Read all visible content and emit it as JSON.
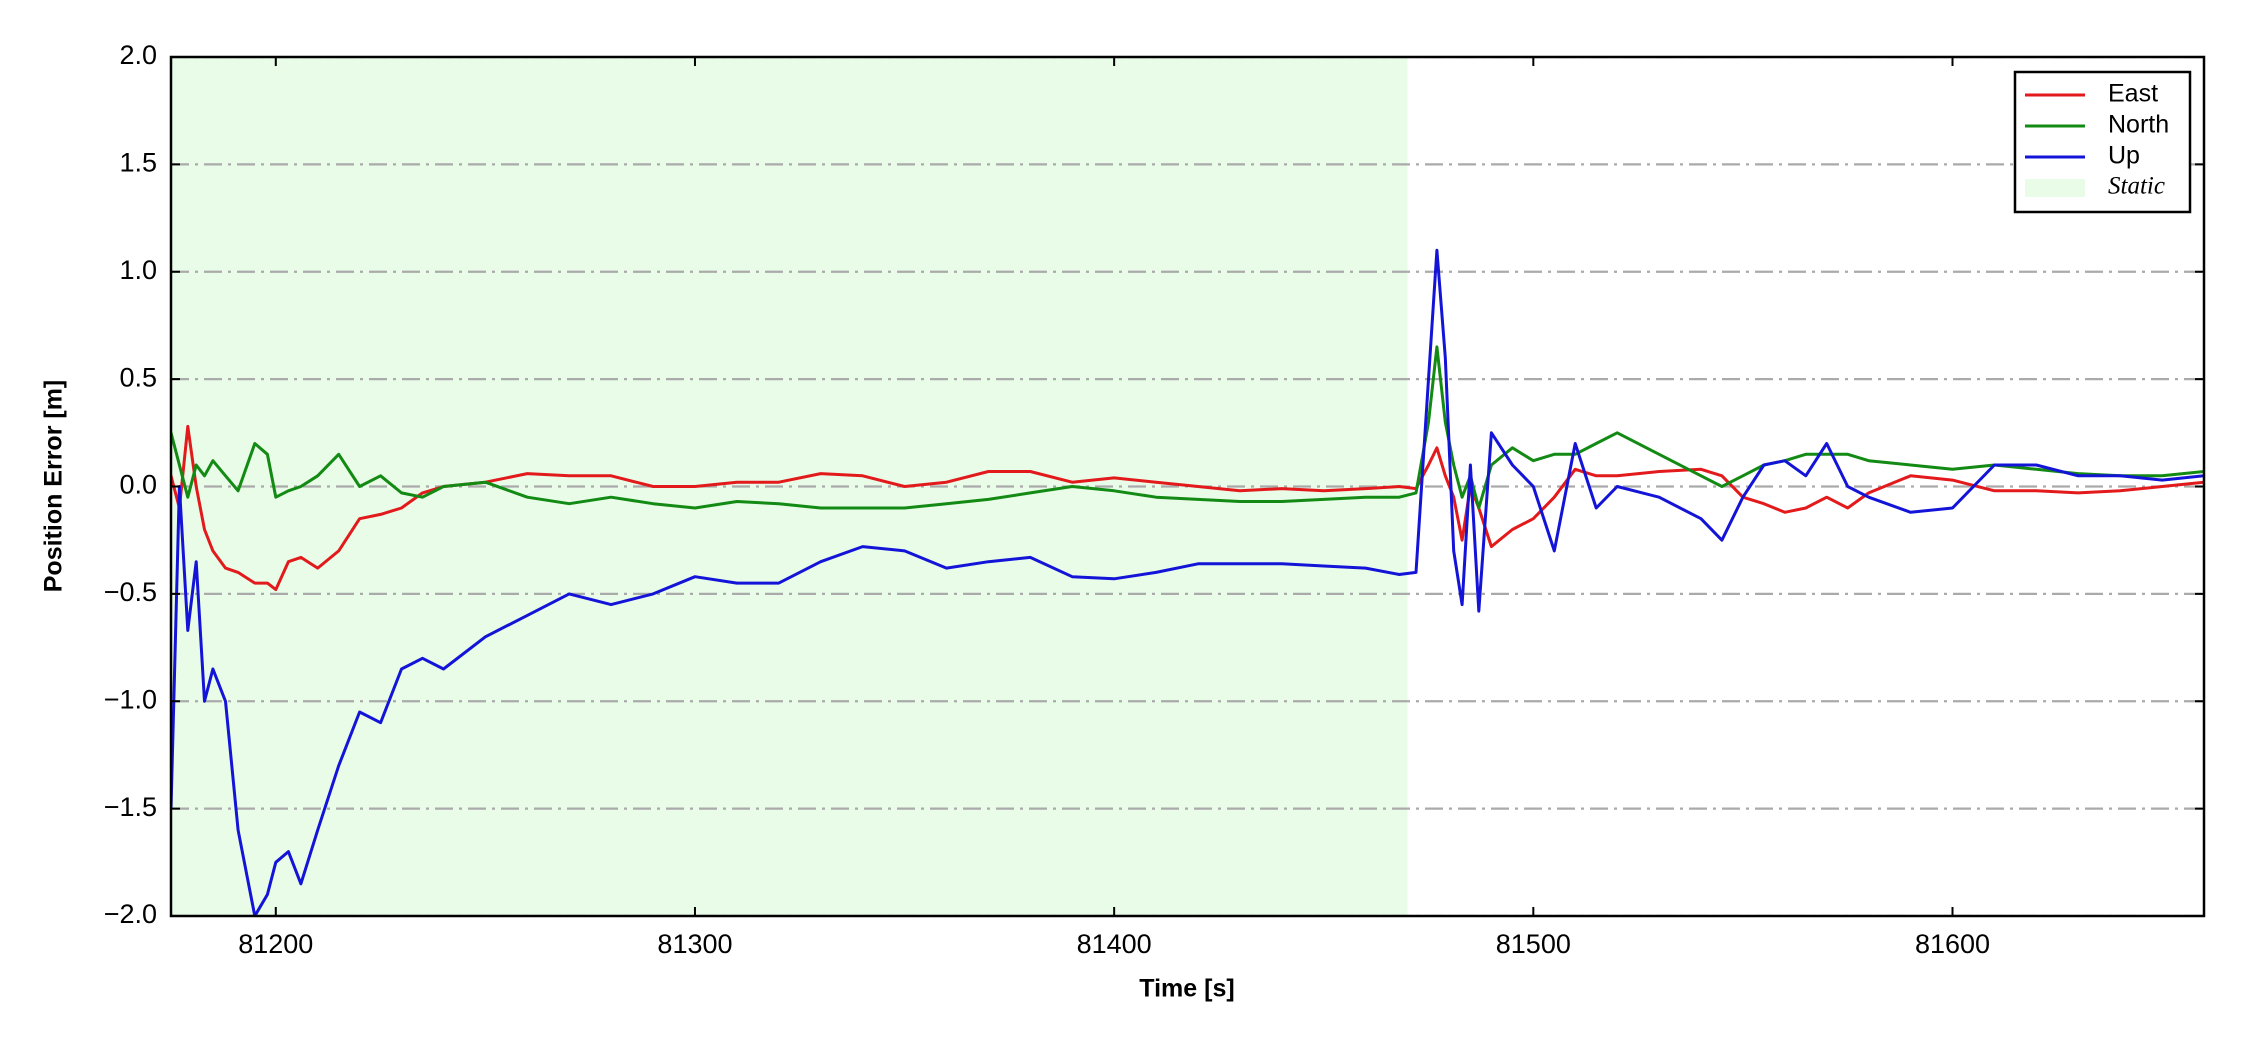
{
  "chart_data": {
    "type": "line",
    "xlabel": "Time [s]",
    "ylabel": "Position Error [m]",
    "x": [
      81175,
      81177,
      81179,
      81181,
      81183,
      81185,
      81188,
      81191,
      81195,
      81198,
      81200,
      81203,
      81206,
      81210,
      81215,
      81220,
      81225,
      81230,
      81235,
      81240,
      81250,
      81260,
      81270,
      81280,
      81290,
      81300,
      81310,
      81320,
      81330,
      81340,
      81350,
      81360,
      81370,
      81380,
      81390,
      81400,
      81410,
      81420,
      81430,
      81440,
      81450,
      81460,
      81468,
      81472,
      81475,
      81477,
      81479,
      81481,
      81483,
      81485,
      81487,
      81490,
      81495,
      81500,
      81505,
      81510,
      81515,
      81520,
      81530,
      81540,
      81545,
      81550,
      81555,
      81560,
      81565,
      81570,
      81575,
      81580,
      81590,
      81600,
      81610,
      81620,
      81630,
      81640,
      81650,
      81660
    ],
    "series": [
      {
        "name": "East",
        "color": "#e31a1c",
        "values": [
          0.05,
          -0.1,
          0.28,
          0.0,
          -0.2,
          -0.3,
          -0.38,
          -0.4,
          -0.45,
          -0.45,
          -0.48,
          -0.35,
          -0.33,
          -0.38,
          -0.3,
          -0.15,
          -0.13,
          -0.1,
          -0.03,
          0.0,
          0.02,
          0.06,
          0.05,
          0.05,
          0.0,
          0.0,
          0.02,
          0.02,
          0.06,
          0.05,
          0.0,
          0.02,
          0.07,
          0.07,
          0.02,
          0.04,
          0.02,
          0.0,
          -0.02,
          -0.01,
          -0.02,
          -0.01,
          0.0,
          -0.01,
          0.1,
          0.18,
          0.05,
          -0.05,
          -0.25,
          0.0,
          -0.1,
          -0.28,
          -0.2,
          -0.15,
          -0.05,
          0.08,
          0.05,
          0.05,
          0.07,
          0.08,
          0.05,
          -0.05,
          -0.08,
          -0.12,
          -0.1,
          -0.05,
          -0.1,
          -0.03,
          0.05,
          0.03,
          -0.02,
          -0.02,
          -0.03,
          -0.02,
          0.0,
          0.02
        ]
      },
      {
        "name": "North",
        "color": "#138a13",
        "values": [
          0.25,
          0.1,
          -0.05,
          0.1,
          0.05,
          0.12,
          0.05,
          -0.02,
          0.2,
          0.15,
          -0.05,
          -0.02,
          0.0,
          0.05,
          0.15,
          0.0,
          0.05,
          -0.03,
          -0.05,
          0.0,
          0.02,
          -0.05,
          -0.08,
          -0.05,
          -0.08,
          -0.1,
          -0.07,
          -0.08,
          -0.1,
          -0.1,
          -0.1,
          -0.08,
          -0.06,
          -0.03,
          0.0,
          -0.02,
          -0.05,
          -0.06,
          -0.07,
          -0.07,
          -0.06,
          -0.05,
          -0.05,
          -0.03,
          0.3,
          0.65,
          0.3,
          0.1,
          -0.05,
          0.05,
          -0.1,
          0.1,
          0.18,
          0.12,
          0.15,
          0.15,
          0.2,
          0.25,
          0.15,
          0.05,
          0.0,
          0.05,
          0.1,
          0.12,
          0.15,
          0.15,
          0.15,
          0.12,
          0.1,
          0.08,
          0.1,
          0.08,
          0.06,
          0.05,
          0.05,
          0.07
        ]
      },
      {
        "name": "Up",
        "color": "#1414d8",
        "values": [
          -1.5,
          0.0,
          -0.67,
          -0.35,
          -1.0,
          -0.85,
          -1.0,
          -1.6,
          -2.0,
          -1.9,
          -1.75,
          -1.7,
          -1.85,
          -1.6,
          -1.3,
          -1.05,
          -1.1,
          -0.85,
          -0.8,
          -0.85,
          -0.7,
          -0.6,
          -0.5,
          -0.55,
          -0.5,
          -0.42,
          -0.45,
          -0.45,
          -0.35,
          -0.28,
          -0.3,
          -0.38,
          -0.35,
          -0.33,
          -0.42,
          -0.43,
          -0.4,
          -0.36,
          -0.36,
          -0.36,
          -0.37,
          -0.38,
          -0.41,
          -0.4,
          0.5,
          1.1,
          0.6,
          -0.3,
          -0.55,
          0.1,
          -0.58,
          0.25,
          0.1,
          0.0,
          -0.3,
          0.2,
          -0.1,
          0.0,
          -0.05,
          -0.15,
          -0.25,
          -0.05,
          0.1,
          0.12,
          0.05,
          0.2,
          0.0,
          -0.05,
          -0.12,
          -0.1,
          0.1,
          0.1,
          0.05,
          0.05,
          0.03,
          0.05
        ]
      }
    ],
    "shaded_region": {
      "label": "Static",
      "x": [
        81175,
        81470
      ],
      "color": "#e8fce8"
    },
    "xlim": [
      81175,
      81660
    ],
    "xticks": [
      81200,
      81300,
      81400,
      81500,
      81600
    ],
    "ylim": [
      -2.0,
      2.0
    ],
    "yticks": [
      {
        "value": -2.0,
        "label": "−2.0"
      },
      {
        "value": -1.5,
        "label": "−1.5"
      },
      {
        "value": -1.0,
        "label": "−1.0"
      },
      {
        "value": -0.5,
        "label": "−0.5"
      },
      {
        "value": 0.0,
        "label": "0.0"
      },
      {
        "value": 0.5,
        "label": "0.5"
      },
      {
        "value": 1.0,
        "label": "1.0"
      },
      {
        "value": 1.5,
        "label": "1.5"
      },
      {
        "value": 2.0,
        "label": "2.0"
      }
    ],
    "grid": true,
    "legend": "upper right"
  }
}
